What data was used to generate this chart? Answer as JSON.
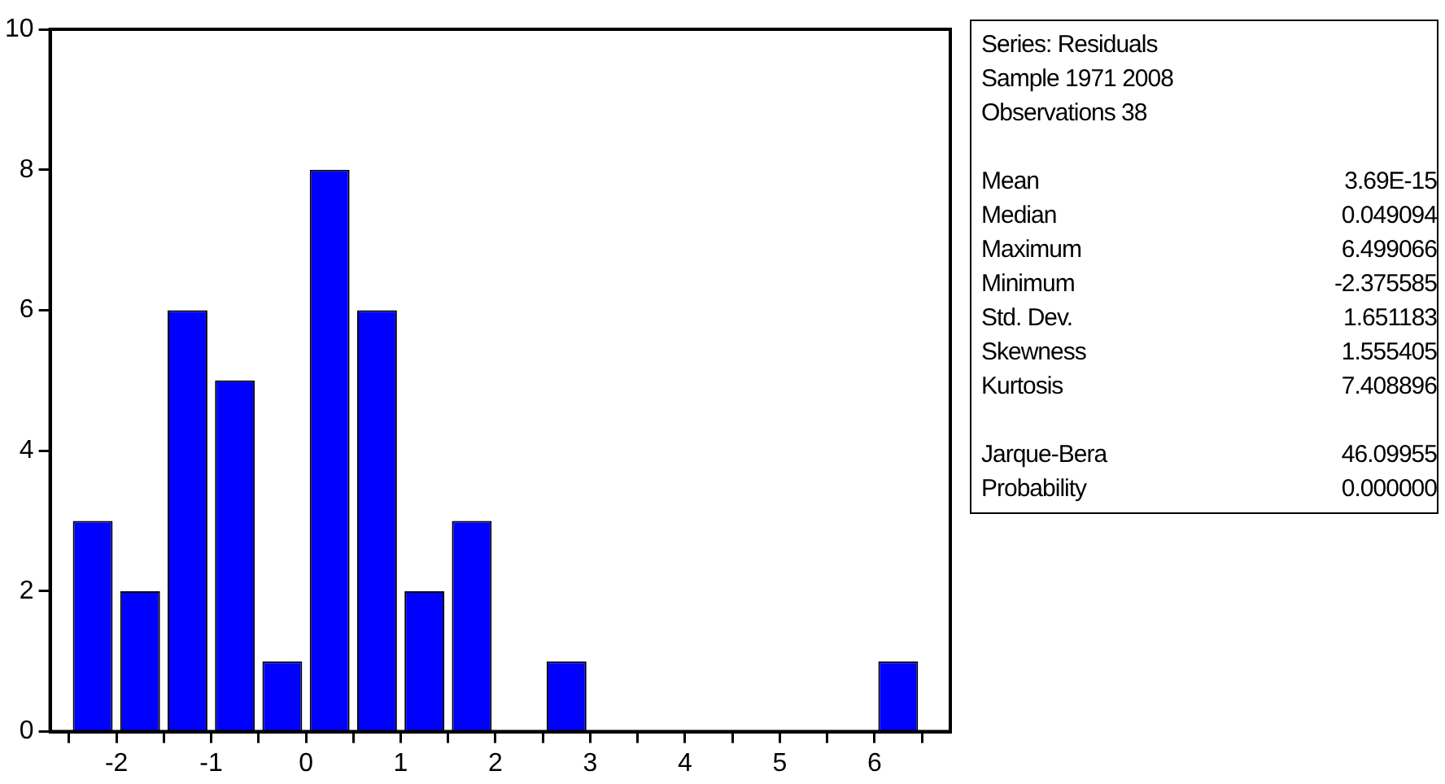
{
  "chart_data": {
    "type": "histogram",
    "color": "#0000ff",
    "bins": [
      -2.5,
      -2,
      -1.5,
      -1,
      -0.5,
      0,
      0.5,
      1,
      1.5,
      2,
      2.5,
      3,
      3.5,
      4,
      4.5,
      5,
      5.5,
      6,
      6.5
    ],
    "values": [
      3,
      2,
      6,
      5,
      1,
      8,
      6,
      2,
      3,
      0,
      1,
      0,
      0,
      0,
      0,
      0,
      0,
      1
    ],
    "xlim": [
      -2.7,
      6.8
    ],
    "xticks": [
      {
        "value": -2.5,
        "label": null
      },
      -2,
      {
        "value": -1.5,
        "label": null
      },
      -1,
      {
        "value": -0.5,
        "label": null
      },
      0,
      {
        "value": 0.5,
        "label": null
      },
      1,
      {
        "value": 1.5,
        "label": null
      },
      2,
      {
        "value": 2.5,
        "label": null
      },
      3,
      {
        "value": 3.5,
        "label": null
      },
      4,
      {
        "value": 4.5,
        "label": null
      },
      5,
      {
        "value": 5.5,
        "label": null
      },
      6,
      {
        "value": 6.5,
        "label": null
      }
    ],
    "ylim": [
      0,
      10
    ],
    "yticks": [
      0,
      2,
      4,
      6,
      8,
      10
    ],
    "annotations": [
      "Series: Residuals\nSample 1971 2008\nObservations 38",
      "Mean\t3.69E-15\nMedian\t0.049094\nMaximum\t6.499066\nMinimum\t-2.375585\nStd. Dev.\t1.651183\nSkewness\t1.555405\nKurtosis\t7.408896",
      "Jarque-Bera\t46.09955\nProbability\t0.000000"
    ]
  }
}
